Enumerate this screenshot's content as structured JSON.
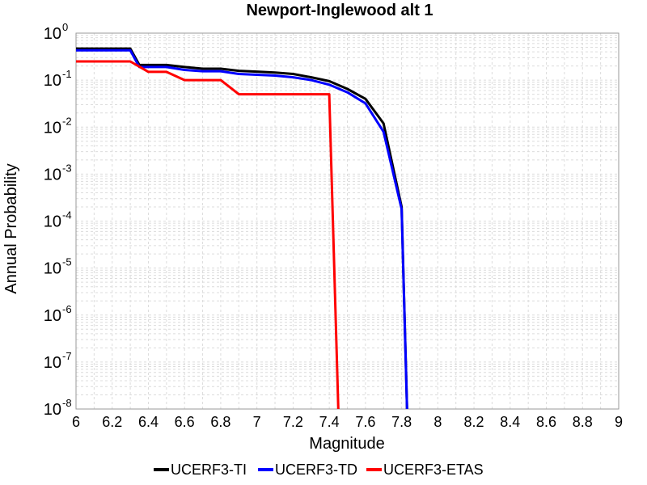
{
  "chart_data": {
    "type": "line",
    "title": "Newport-Inglewood alt 1",
    "xlabel": "Magnitude",
    "ylabel": "Annual Probability",
    "xlim": [
      6,
      9
    ],
    "ylim": [
      1e-08,
      1
    ],
    "yscale": "log",
    "grid": true,
    "legend_position": "bottom",
    "xticks": [
      "6",
      "6.2",
      "6.4",
      "6.6",
      "6.8",
      "7",
      "7.2",
      "7.4",
      "7.6",
      "7.8",
      "8",
      "8.2",
      "8.4",
      "8.6",
      "8.8",
      "9"
    ],
    "yticks": [
      {
        "base": "10",
        "exp": "0"
      },
      {
        "base": "10",
        "exp": "-1"
      },
      {
        "base": "10",
        "exp": "-2"
      },
      {
        "base": "10",
        "exp": "-3"
      },
      {
        "base": "10",
        "exp": "-4"
      },
      {
        "base": "10",
        "exp": "-5"
      },
      {
        "base": "10",
        "exp": "-6"
      },
      {
        "base": "10",
        "exp": "-7"
      },
      {
        "base": "10",
        "exp": "-8"
      }
    ],
    "series": [
      {
        "name": "UCERF3-TI",
        "color": "#000000",
        "points": [
          [
            6.0,
            0.47
          ],
          [
            6.3,
            0.47
          ],
          [
            6.35,
            0.21
          ],
          [
            6.5,
            0.21
          ],
          [
            6.6,
            0.19
          ],
          [
            6.7,
            0.175
          ],
          [
            6.8,
            0.175
          ],
          [
            6.9,
            0.158
          ],
          [
            7.0,
            0.152
          ],
          [
            7.1,
            0.145
          ],
          [
            7.2,
            0.135
          ],
          [
            7.3,
            0.115
          ],
          [
            7.4,
            0.095
          ],
          [
            7.5,
            0.065
          ],
          [
            7.6,
            0.04
          ],
          [
            7.7,
            0.012
          ],
          [
            7.8,
            0.0002
          ],
          [
            7.83,
            1e-08
          ]
        ]
      },
      {
        "name": "UCERF3-TD",
        "color": "#0000ff",
        "points": [
          [
            6.0,
            0.43
          ],
          [
            6.3,
            0.43
          ],
          [
            6.35,
            0.19
          ],
          [
            6.5,
            0.19
          ],
          [
            6.6,
            0.165
          ],
          [
            6.7,
            0.155
          ],
          [
            6.8,
            0.155
          ],
          [
            6.9,
            0.135
          ],
          [
            7.0,
            0.13
          ],
          [
            7.1,
            0.125
          ],
          [
            7.2,
            0.115
          ],
          [
            7.3,
            0.1
          ],
          [
            7.4,
            0.08
          ],
          [
            7.5,
            0.055
          ],
          [
            7.6,
            0.032
          ],
          [
            7.7,
            0.008
          ],
          [
            7.8,
            0.00018
          ],
          [
            7.83,
            1e-08
          ]
        ]
      },
      {
        "name": "UCERF3-ETAS",
        "color": "#ff0000",
        "points": [
          [
            6.0,
            0.25
          ],
          [
            6.3,
            0.25
          ],
          [
            6.4,
            0.15
          ],
          [
            6.5,
            0.15
          ],
          [
            6.6,
            0.1
          ],
          [
            6.8,
            0.1
          ],
          [
            6.9,
            0.05
          ],
          [
            7.4,
            0.05
          ],
          [
            7.45,
            1e-08
          ]
        ]
      }
    ]
  }
}
